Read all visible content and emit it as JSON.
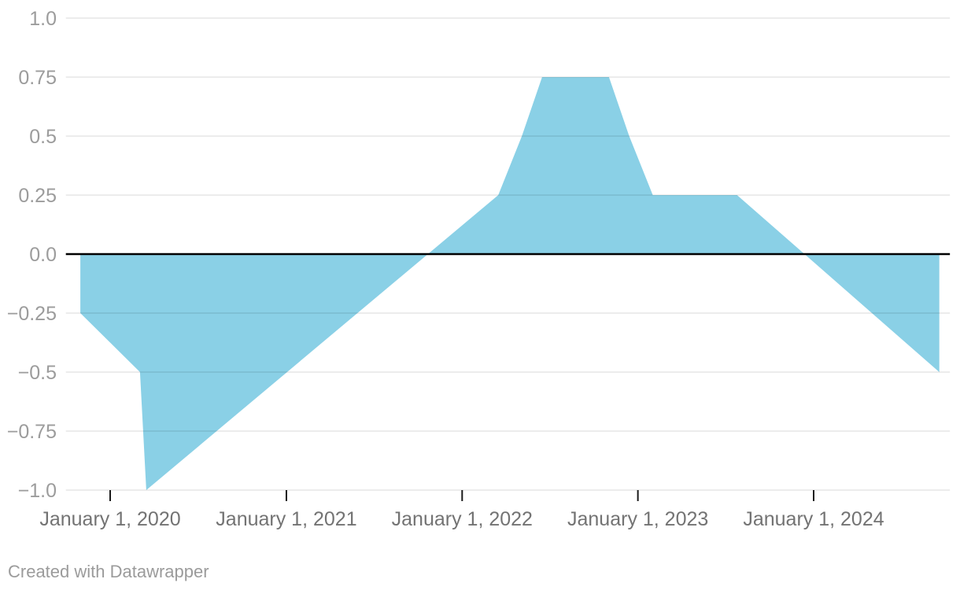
{
  "chart_data": {
    "type": "area",
    "title": "",
    "xlabel": "",
    "ylabel": "",
    "grid": true,
    "baseline": 0,
    "area_color": "#8ad0e6",
    "series": [
      {
        "name": "value",
        "points": [
          {
            "date": "2019-10-31",
            "value": -0.25
          },
          {
            "date": "2020-03-03",
            "value": -0.5
          },
          {
            "date": "2020-03-16",
            "value": -1.0
          },
          {
            "date": "2022-03-17",
            "value": 0.25
          },
          {
            "date": "2022-05-05",
            "value": 0.5
          },
          {
            "date": "2022-06-16",
            "value": 0.75
          },
          {
            "date": "2022-11-02",
            "value": 0.75
          },
          {
            "date": "2022-12-14",
            "value": 0.5
          },
          {
            "date": "2023-02-01",
            "value": 0.25
          },
          {
            "date": "2023-07-26",
            "value": 0.25
          },
          {
            "date": "2024-09-18",
            "value": -0.5
          }
        ]
      }
    ],
    "x_axis": {
      "type": "time",
      "range": [
        "2019-10-01",
        "2024-10-10"
      ],
      "ticks": [
        {
          "date": "2020-01-01",
          "label": "January 1, 2020"
        },
        {
          "date": "2021-01-01",
          "label": "January 1, 2021"
        },
        {
          "date": "2022-01-01",
          "label": "January 1, 2022"
        },
        {
          "date": "2023-01-01",
          "label": "January 1, 2023"
        },
        {
          "date": "2024-01-01",
          "label": "January 1, 2024"
        }
      ]
    },
    "y_axis": {
      "range": [
        -1.0,
        1.0
      ],
      "ticks": [
        {
          "value": 1.0,
          "label": "1.0"
        },
        {
          "value": 0.75,
          "label": "0.75"
        },
        {
          "value": 0.5,
          "label": "0.5"
        },
        {
          "value": 0.25,
          "label": "0.25"
        },
        {
          "value": 0.0,
          "label": "0.0"
        },
        {
          "value": -0.25,
          "label": "−0.25"
        },
        {
          "value": -0.5,
          "label": "−0.5"
        },
        {
          "value": -0.75,
          "label": "−0.75"
        },
        {
          "value": -1.0,
          "label": "−1.0"
        }
      ]
    },
    "legend": null
  },
  "footer": {
    "credit": "Created with Datawrapper"
  },
  "colors": {
    "area": "#8ad0e6",
    "grid": "rgba(0,0,0,0.10)",
    "zero_line": "#000000",
    "tick": "#1a1a1a",
    "y_label": "#9c9c9c",
    "x_label": "#737373",
    "credit": "#9b9b9b",
    "background": "#ffffff"
  }
}
